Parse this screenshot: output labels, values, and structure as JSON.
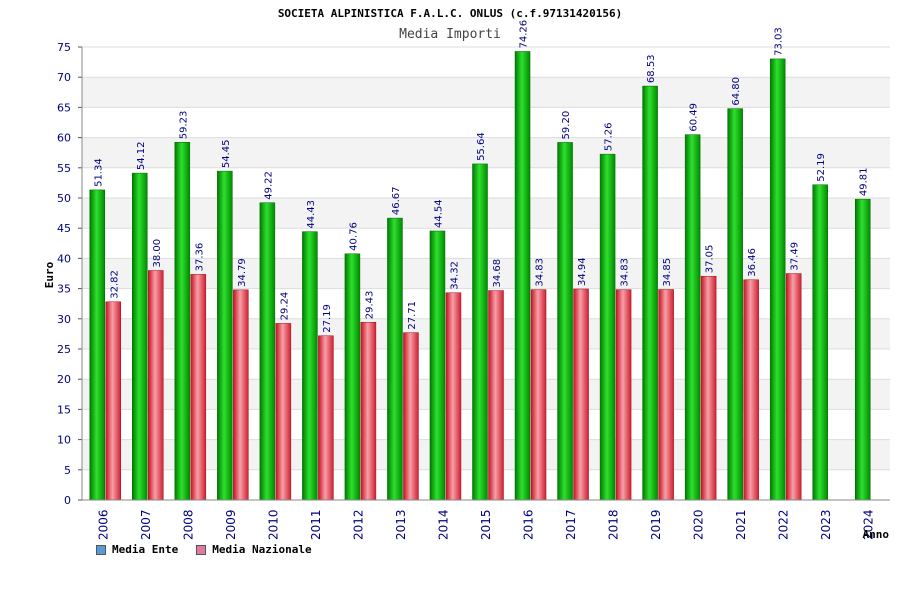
{
  "chart_data": {
    "type": "bar",
    "title": "SOCIETA ALPINISTICA F.A.L.C. ONLUS (c.f.97131420156)",
    "subtitle": "Media Importi",
    "xlabel": "Anno",
    "ylabel": "Euro",
    "ylim": [
      0,
      75
    ],
    "yticks": [
      0,
      5,
      10,
      15,
      20,
      25,
      30,
      35,
      40,
      45,
      50,
      55,
      60,
      65,
      70,
      75
    ],
    "categories": [
      "2006",
      "2007",
      "2008",
      "2009",
      "2010",
      "2011",
      "2012",
      "2013",
      "2014",
      "2015",
      "2016",
      "2017",
      "2018",
      "2019",
      "2020",
      "2021",
      "2022",
      "2023",
      "2024"
    ],
    "series": [
      {
        "name": "Media Ente",
        "legend_color": "#5b9bd5",
        "bar_color": "#1fa51f",
        "values": [
          51.34,
          54.12,
          59.23,
          54.45,
          49.22,
          44.43,
          40.76,
          46.67,
          44.54,
          55.64,
          74.26,
          59.2,
          57.26,
          68.53,
          60.49,
          64.8,
          73.03,
          52.19,
          49.81
        ],
        "labels": [
          "51.34",
          "54.12",
          "59.23",
          "54.45",
          "49.22",
          "44.43",
          "40.76",
          "46.67",
          "44.54",
          "55.64",
          "74.26",
          "59.20",
          "57.26",
          "68.53",
          "60.49",
          "64.80",
          "73.03",
          "52.19",
          "49.81"
        ]
      },
      {
        "name": "Media Nazionale",
        "legend_color": "#e07aa0",
        "bar_color": "#e0303a",
        "values": [
          32.82,
          38.0,
          37.36,
          34.79,
          29.24,
          27.19,
          29.43,
          27.71,
          34.32,
          34.68,
          34.83,
          34.94,
          34.83,
          34.85,
          37.05,
          36.46,
          37.49,
          null,
          null
        ],
        "labels": [
          "32.82",
          "38.00",
          "37.36",
          "34.79",
          "29.24",
          "27.19",
          "29.43",
          "27.71",
          "34.32",
          "34.68",
          "34.83",
          "34.94",
          "34.83",
          "34.85",
          "37.05",
          "36.46",
          "37.49",
          null,
          null
        ]
      }
    ],
    "grid": true,
    "legend_position": "bottom-left"
  }
}
